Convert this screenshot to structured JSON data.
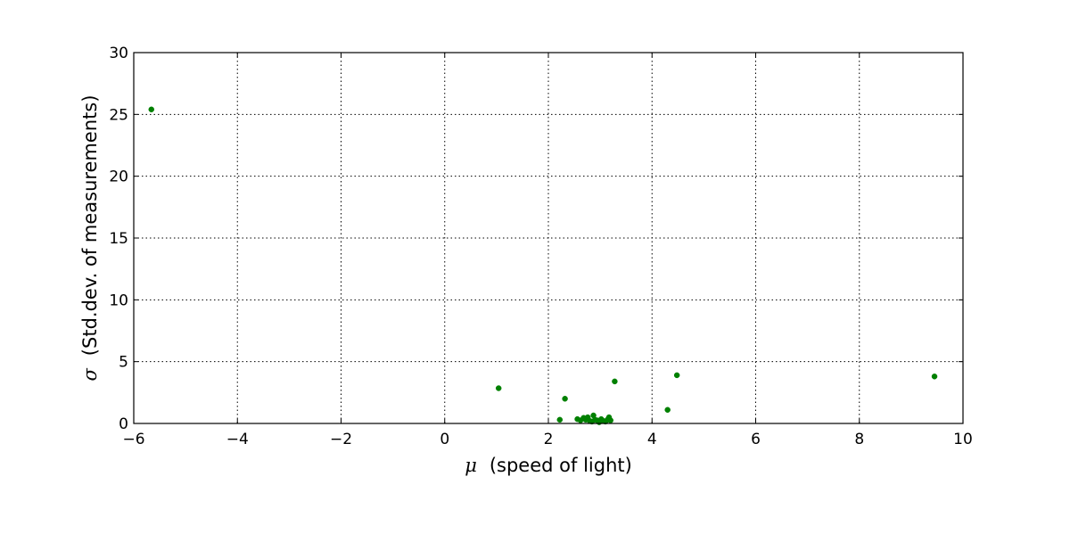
{
  "chart_data": {
    "type": "scatter",
    "title": "",
    "xlabel_symbol": "μ",
    "xlabel_text": "(speed of light)",
    "ylabel_symbol": "σ",
    "ylabel_text": "(Std.dev. of measurements)",
    "xlim": [
      -6,
      10
    ],
    "ylim": [
      0,
      30
    ],
    "xticks": [
      -6,
      -4,
      -2,
      0,
      2,
      4,
      6,
      8,
      10
    ],
    "xtick_labels": [
      "−6",
      "−4",
      "−2",
      "0",
      "2",
      "4",
      "6",
      "8",
      "10"
    ],
    "yticks": [
      0,
      5,
      10,
      15,
      20,
      25,
      30
    ],
    "ytick_labels": [
      "0",
      "5",
      "10",
      "15",
      "20",
      "25",
      "30"
    ],
    "grid": true,
    "point_color": "#008000",
    "points": [
      {
        "x": -5.66,
        "y": 25.4
      },
      {
        "x": 1.04,
        "y": 2.85
      },
      {
        "x": 2.22,
        "y": 0.3
      },
      {
        "x": 2.32,
        "y": 2.0
      },
      {
        "x": 2.56,
        "y": 0.35
      },
      {
        "x": 2.62,
        "y": 0.25
      },
      {
        "x": 2.68,
        "y": 0.45
      },
      {
        "x": 2.72,
        "y": 0.3
      },
      {
        "x": 2.76,
        "y": 0.5
      },
      {
        "x": 2.8,
        "y": 0.2
      },
      {
        "x": 2.84,
        "y": 0.15
      },
      {
        "x": 2.87,
        "y": 0.65
      },
      {
        "x": 2.9,
        "y": 0.3
      },
      {
        "x": 2.94,
        "y": 0.25
      },
      {
        "x": 2.98,
        "y": 0.1
      },
      {
        "x": 3.02,
        "y": 0.35
      },
      {
        "x": 3.06,
        "y": 0.2
      },
      {
        "x": 3.1,
        "y": 0.15
      },
      {
        "x": 3.14,
        "y": 0.3
      },
      {
        "x": 3.17,
        "y": 0.5
      },
      {
        "x": 3.2,
        "y": 0.25
      },
      {
        "x": 3.28,
        "y": 3.4
      },
      {
        "x": 4.3,
        "y": 1.1
      },
      {
        "x": 4.48,
        "y": 3.9
      },
      {
        "x": 9.45,
        "y": 3.8
      }
    ]
  }
}
